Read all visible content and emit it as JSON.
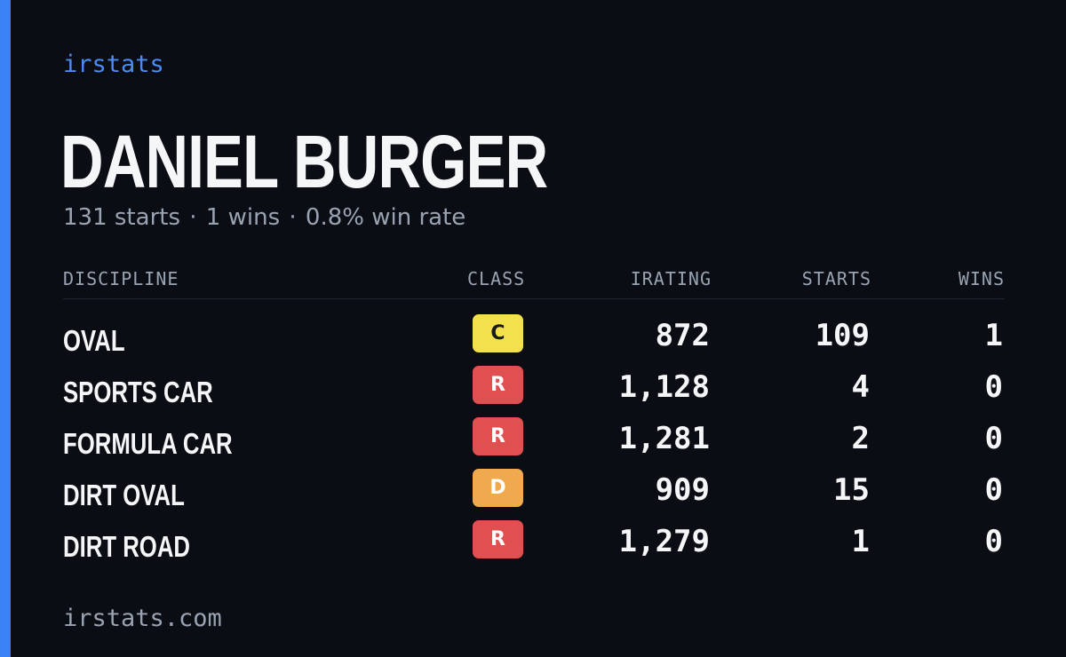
{
  "brand": "irstats",
  "driver": {
    "name": "DANIEL BURGER",
    "starts_text": "131 starts",
    "wins_text": "1 wins",
    "win_rate_text": "0.8% win rate",
    "separator": "·"
  },
  "table": {
    "headers": {
      "discipline": "DISCIPLINE",
      "class": "CLASS",
      "irating": "IRATING",
      "starts": "STARTS",
      "wins": "WINS"
    },
    "rows": [
      {
        "discipline": "OVAL",
        "class": "C",
        "class_color": "#f2e14d",
        "class_text_color": "#1a1a1a",
        "irating": "872",
        "starts": "109",
        "wins": "1"
      },
      {
        "discipline": "SPORTS CAR",
        "class": "R",
        "class_color": "#e05050",
        "class_text_color": "#ffffff",
        "irating": "1,128",
        "starts": "4",
        "wins": "0"
      },
      {
        "discipline": "FORMULA CAR",
        "class": "R",
        "class_color": "#e05050",
        "class_text_color": "#ffffff",
        "irating": "1,281",
        "starts": "2",
        "wins": "0"
      },
      {
        "discipline": "DIRT OVAL",
        "class": "D",
        "class_color": "#eeaa4c",
        "class_text_color": "#ffffff",
        "irating": "909",
        "starts": "15",
        "wins": "0"
      },
      {
        "discipline": "DIRT ROAD",
        "class": "R",
        "class_color": "#e05050",
        "class_text_color": "#ffffff",
        "irating": "1,279",
        "starts": "1",
        "wins": "0"
      }
    ]
  },
  "footer": "irstats.com",
  "colors": {
    "background": "#0a0d14",
    "accent": "#3b82f6",
    "muted_text": "#9aa3b2"
  }
}
